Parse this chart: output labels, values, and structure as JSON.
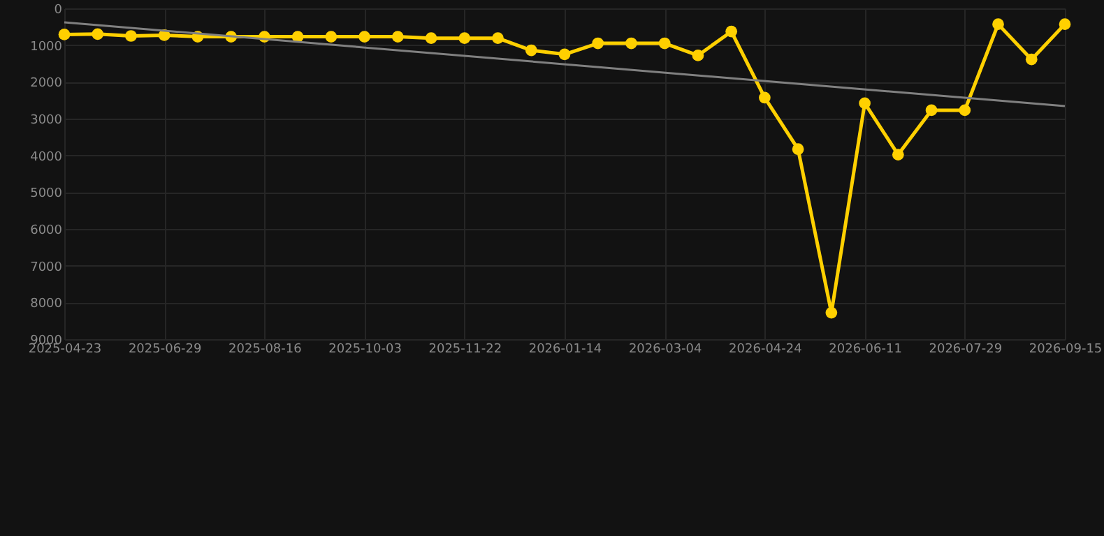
{
  "chart_data": {
    "type": "line",
    "categories": [
      "2025-04-23",
      null,
      null,
      "2025-06-29",
      null,
      null,
      "2025-08-16",
      null,
      null,
      "2025-10-03",
      null,
      null,
      "2025-11-22",
      null,
      null,
      "2026-01-14",
      null,
      null,
      "2026-03-04",
      null,
      null,
      "2026-04-24",
      null,
      null,
      "2026-06-11",
      null,
      null,
      "2026-07-29",
      null,
      null,
      "2026-09-15"
    ],
    "series": [
      {
        "color": "#ffd000",
        "marker": "circle",
        "values": [
          710,
          700,
          750,
          730,
          770,
          770,
          770,
          770,
          770,
          770,
          770,
          810,
          810,
          810,
          1140,
          1250,
          950,
          950,
          950,
          1280,
          630,
          2430,
          3830,
          8280,
          2580,
          3980,
          2770,
          2770,
          430,
          1390,
          430
        ]
      },
      {
        "type": "line",
        "color": "#808080",
        "marker": "none",
        "values": [
          380,
          null,
          null,
          null,
          null,
          null,
          null,
          null,
          null,
          null,
          null,
          null,
          null,
          null,
          null,
          null,
          null,
          null,
          null,
          null,
          null,
          null,
          null,
          null,
          null,
          null,
          null,
          null,
          null,
          null,
          2660
        ]
      }
    ],
    "ylim": [
      9000,
      0
    ],
    "yticks": [
      0,
      1000,
      2000,
      3000,
      4000,
      5000,
      6000,
      7000,
      8000,
      9000
    ],
    "grid": true,
    "line_style": "solid"
  }
}
